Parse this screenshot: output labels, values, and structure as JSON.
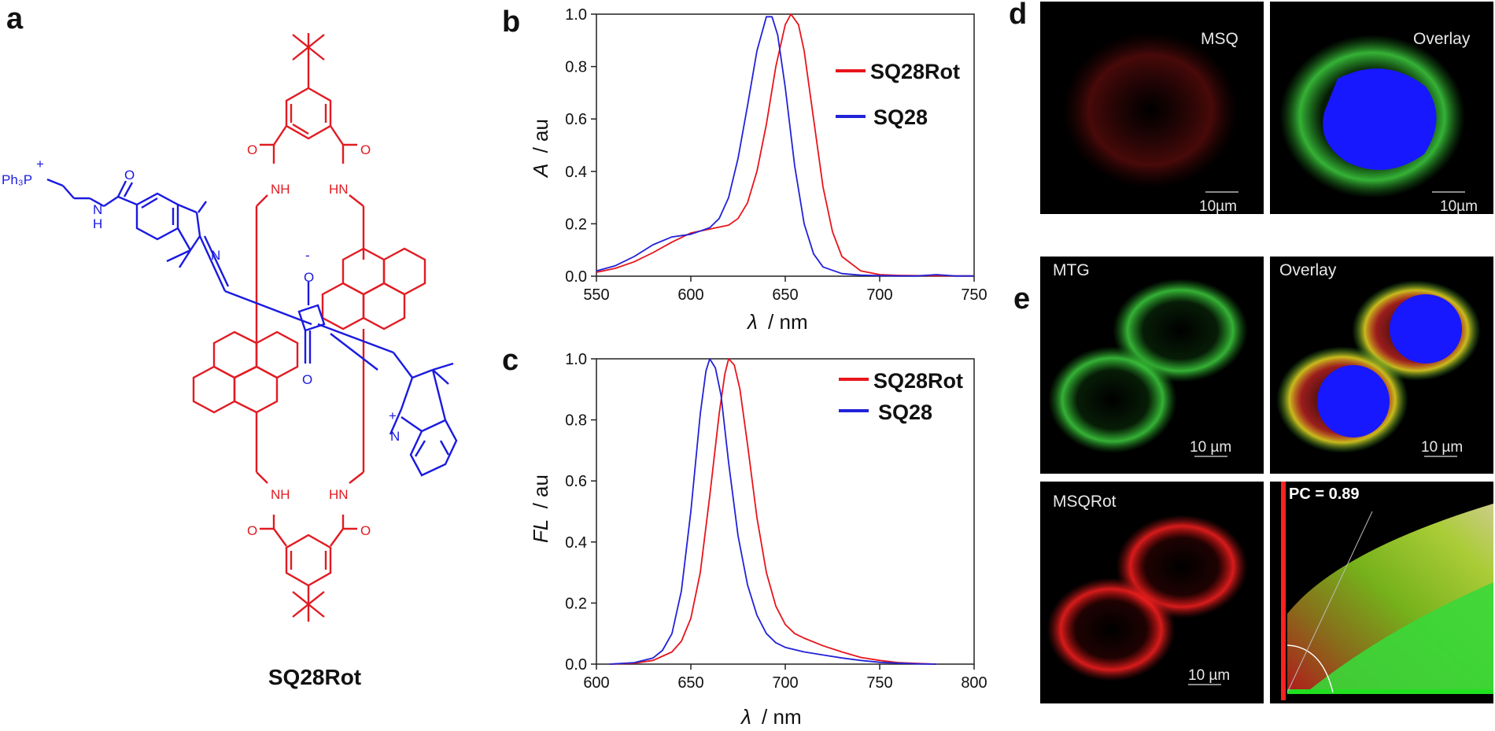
{
  "panels": {
    "a": "a",
    "b": "b",
    "c": "c",
    "d": "d",
    "e": "e"
  },
  "molecule": {
    "name": "SQ28Rot",
    "labels": {
      "ph3p": "Ph₃P",
      "plus": "+",
      "nh": "NH",
      "hn": "HN",
      "o": "O",
      "h": "H",
      "n": "N",
      "minus": "-"
    },
    "colors": {
      "macrocycle": "#e11b22",
      "dye": "#1a1ae0"
    }
  },
  "chart_data": [
    {
      "panel": "b",
      "type": "line",
      "xlabel_var": "λ",
      "xlabel_unit": "/ nm",
      "ylabel_var": "A",
      "ylabel_unit": "/ au",
      "xlim": [
        550,
        750
      ],
      "ylim": [
        0,
        1.0
      ],
      "xticks": [
        550,
        600,
        650,
        700,
        750
      ],
      "yticks": [
        0.0,
        0.2,
        0.4,
        0.6,
        0.8,
        1.0
      ],
      "series": [
        {
          "name": "SQ28Rot",
          "color": "#e8141c",
          "x": [
            550,
            560,
            570,
            580,
            590,
            600,
            610,
            620,
            625,
            630,
            635,
            640,
            645,
            650,
            653,
            657,
            660,
            665,
            670,
            675,
            680,
            690,
            700,
            710,
            720,
            730,
            740,
            750
          ],
          "y": [
            0.015,
            0.03,
            0.055,
            0.09,
            0.13,
            0.165,
            0.18,
            0.195,
            0.22,
            0.28,
            0.4,
            0.58,
            0.8,
            0.96,
            1.0,
            0.96,
            0.86,
            0.6,
            0.34,
            0.17,
            0.075,
            0.02,
            0.006,
            0.003,
            0.002,
            0.002,
            0.001,
            0.001
          ]
        },
        {
          "name": "SQ28",
          "color": "#2222d8",
          "x": [
            550,
            560,
            570,
            580,
            590,
            600,
            610,
            615,
            620,
            625,
            630,
            635,
            640,
            643,
            646,
            650,
            655,
            660,
            665,
            670,
            680,
            690,
            700,
            710,
            720,
            730,
            740,
            750
          ],
          "y": [
            0.02,
            0.04,
            0.075,
            0.12,
            0.15,
            0.16,
            0.185,
            0.22,
            0.3,
            0.45,
            0.65,
            0.86,
            0.99,
            0.99,
            0.92,
            0.72,
            0.42,
            0.2,
            0.085,
            0.035,
            0.01,
            0.004,
            0.002,
            0.001,
            0.001,
            0.006,
            0.001,
            0.001
          ]
        }
      ]
    },
    {
      "panel": "c",
      "type": "line",
      "xlabel_var": "λ",
      "xlabel_unit": "/ nm",
      "ylabel_var": "FL",
      "ylabel_unit": "/ au",
      "xlim": [
        600,
        800
      ],
      "ylim": [
        0,
        1.0
      ],
      "xticks": [
        600,
        650,
        700,
        750,
        800
      ],
      "yticks": [
        0.0,
        0.2,
        0.4,
        0.6,
        0.8,
        1.0
      ],
      "series": [
        {
          "name": "SQ28Rot",
          "color": "#e8141c",
          "x": [
            607,
            620,
            630,
            640,
            645,
            650,
            655,
            660,
            665,
            668,
            670,
            673,
            676,
            680,
            685,
            690,
            695,
            700,
            705,
            710,
            720,
            730,
            740,
            750,
            760,
            770,
            780
          ],
          "y": [
            0.0,
            0.003,
            0.012,
            0.04,
            0.075,
            0.15,
            0.3,
            0.55,
            0.82,
            0.95,
            1.0,
            0.98,
            0.9,
            0.72,
            0.48,
            0.3,
            0.19,
            0.13,
            0.1,
            0.085,
            0.06,
            0.04,
            0.022,
            0.012,
            0.005,
            0.002,
            0.0
          ]
        },
        {
          "name": "SQ28",
          "color": "#2222d8",
          "x": [
            607,
            620,
            630,
            635,
            640,
            645,
            650,
            655,
            658,
            660,
            663,
            666,
            670,
            675,
            680,
            685,
            690,
            695,
            700,
            710,
            720,
            730,
            740,
            750,
            760,
            770,
            780
          ],
          "y": [
            0.0,
            0.005,
            0.02,
            0.045,
            0.1,
            0.24,
            0.5,
            0.82,
            0.96,
            1.0,
            0.97,
            0.88,
            0.66,
            0.42,
            0.26,
            0.16,
            0.1,
            0.07,
            0.055,
            0.04,
            0.03,
            0.02,
            0.012,
            0.006,
            0.003,
            0.001,
            0.0
          ]
        }
      ]
    }
  ],
  "micrographs": {
    "d_left": {
      "label": "MSQ",
      "scale": "10µm"
    },
    "d_right": {
      "label": "Overlay",
      "scale": "10µm"
    },
    "e_tl": {
      "label": "MTG",
      "scale": "10 µm"
    },
    "e_tr": {
      "label": "Overlay",
      "scale": "10 µm"
    },
    "e_bl": {
      "label": "MSQRot",
      "scale": "10 µm"
    },
    "e_br": {
      "label": "PC = 0.89"
    }
  }
}
